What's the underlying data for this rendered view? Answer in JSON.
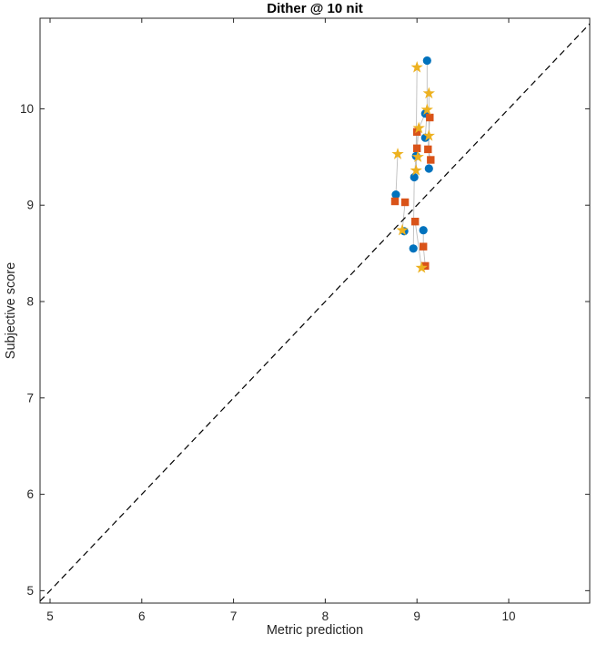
{
  "figure": {
    "title": "Dither @ 10 nit"
  },
  "chart_data": {
    "type": "scatter",
    "title": "Dither @ 10 nit",
    "xlabel": "Metric prediction",
    "ylabel": "Subjective score",
    "xlim": [
      4.891,
      10.883
    ],
    "ylim": [
      4.871,
      10.94
    ],
    "xticks": [
      5,
      6,
      7,
      8,
      9,
      10
    ],
    "yticks": [
      5,
      6,
      7,
      8,
      9,
      10
    ],
    "grid": false,
    "legend": null,
    "axes_color": "#262626",
    "reference_line": {
      "type": "identity",
      "equation": "y = x",
      "style": "dashed",
      "color": "#000000"
    },
    "connector_color": "#bdbdbd",
    "series": [
      {
        "name": "blue-circles",
        "marker": "circle",
        "color": "#0072BD",
        "points": [
          [
            9.11,
            10.5
          ],
          [
            9.09,
            9.95
          ],
          [
            9.09,
            9.7
          ],
          [
            8.99,
            9.51
          ],
          [
            9.13,
            9.38
          ],
          [
            8.97,
            9.29
          ],
          [
            8.77,
            9.11
          ],
          [
            9.07,
            8.74
          ],
          [
            8.86,
            8.73
          ],
          [
            8.96,
            8.55
          ]
        ]
      },
      {
        "name": "orange-squares",
        "marker": "square",
        "color": "#D95319",
        "points": [
          [
            9.14,
            9.91
          ],
          [
            9.0,
            9.76
          ],
          [
            9.0,
            9.59
          ],
          [
            9.12,
            9.58
          ],
          [
            9.15,
            9.47
          ],
          [
            8.76,
            9.04
          ],
          [
            8.87,
            9.03
          ],
          [
            8.98,
            8.83
          ],
          [
            9.07,
            8.57
          ],
          [
            9.09,
            8.37
          ]
        ]
      },
      {
        "name": "yellow-stars",
        "marker": "star",
        "color": "#EDB120",
        "points": [
          [
            9.0,
            10.43
          ],
          [
            9.13,
            10.16
          ],
          [
            9.11,
            9.99
          ],
          [
            9.02,
            9.8
          ],
          [
            9.13,
            9.72
          ],
          [
            8.79,
            9.53
          ],
          [
            9.01,
            9.5
          ],
          [
            8.99,
            9.36
          ],
          [
            8.84,
            8.74
          ],
          [
            9.05,
            8.35
          ]
        ]
      }
    ],
    "connectors": [
      [
        [
          9.0,
          10.43
        ],
        [
          8.99,
          9.51
        ],
        [
          8.97,
          9.29
        ],
        [
          8.96,
          8.55
        ]
      ],
      [
        [
          9.11,
          10.5
        ],
        [
          9.11,
          9.99
        ],
        [
          9.09,
          9.7
        ]
      ],
      [
        [
          9.13,
          10.16
        ],
        [
          9.13,
          9.72
        ],
        [
          9.13,
          9.38
        ]
      ],
      [
        [
          9.02,
          9.8
        ],
        [
          9.0,
          9.59
        ],
        [
          8.99,
          9.36
        ]
      ],
      [
        [
          8.79,
          9.53
        ],
        [
          8.77,
          9.11
        ],
        [
          8.76,
          9.04
        ]
      ],
      [
        [
          8.87,
          9.03
        ],
        [
          8.84,
          8.74
        ],
        [
          8.86,
          8.73
        ]
      ],
      [
        [
          9.14,
          9.91
        ],
        [
          9.12,
          9.58
        ],
        [
          9.15,
          9.47
        ]
      ],
      [
        [
          9.07,
          8.74
        ],
        [
          9.07,
          8.57
        ],
        [
          9.09,
          8.37
        ]
      ],
      [
        [
          8.98,
          8.83
        ],
        [
          9.05,
          8.35
        ]
      ],
      [
        [
          9.0,
          9.76
        ],
        [
          8.99,
          9.51
        ]
      ],
      [
        [
          9.09,
          9.95
        ],
        [
          9.02,
          9.8
        ]
      ]
    ]
  }
}
